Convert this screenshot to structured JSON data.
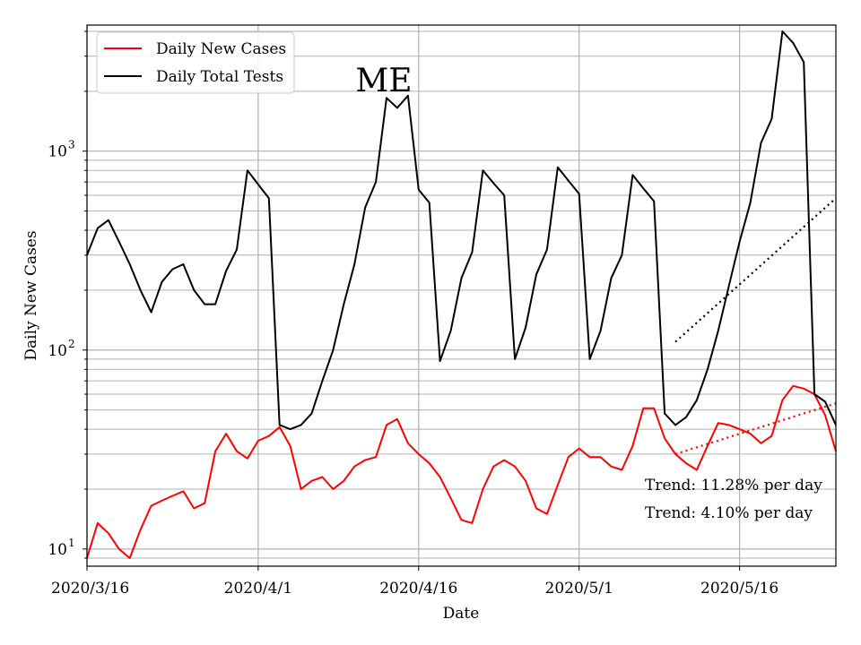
{
  "chart_data": {
    "type": "line",
    "title": "ME",
    "xlabel": "Date",
    "ylabel": "Daily New Cases",
    "yscale": "log",
    "ylim": [
      8.2,
      4300
    ],
    "xlim": [
      0,
      70
    ],
    "grid": true,
    "x_tick_values": [
      0,
      16,
      31,
      46,
      61
    ],
    "x_tick_labels": [
      "2020/3/16",
      "2020/4/1",
      "2020/4/16",
      "2020/5/1",
      "2020/5/16"
    ],
    "y_major_ticks": [
      10,
      100,
      1000
    ],
    "y_tick_labels": [
      {
        "base": "10",
        "exp": "1"
      },
      {
        "base": "10",
        "exp": "2"
      },
      {
        "base": "10",
        "exp": "3"
      }
    ],
    "legend": {
      "position": "top-left",
      "entries": [
        {
          "label": "Daily New Cases",
          "color": "#ff0000"
        },
        {
          "label": "Daily Total Tests",
          "color": "#000000"
        }
      ]
    },
    "series": [
      {
        "name": "Daily New Cases",
        "color": "#ff0000",
        "x": [
          0,
          1,
          2,
          3,
          4,
          5,
          6,
          7,
          8,
          9,
          10,
          11,
          12,
          13,
          14,
          15,
          16,
          17,
          18,
          19,
          20,
          21,
          22,
          23,
          24,
          25,
          26,
          27,
          28,
          29,
          30,
          31,
          32,
          33,
          34,
          35,
          36,
          37,
          38,
          39,
          40,
          41,
          42,
          43,
          44,
          45,
          46,
          47,
          48,
          49,
          50,
          51,
          52,
          53,
          54,
          55,
          56,
          57,
          58,
          59,
          60,
          61,
          62,
          63,
          64,
          65,
          66,
          67,
          68,
          69,
          70
        ],
        "values": [
          9,
          13.5,
          12,
          10,
          9,
          12.5,
          16.5,
          17.5,
          18.5,
          19.5,
          16,
          17,
          31,
          38,
          31,
          28.5,
          35,
          37,
          41,
          33,
          20,
          22,
          23,
          20,
          22,
          26,
          28,
          29,
          42,
          45,
          34,
          30,
          27,
          23,
          18,
          14,
          13.5,
          20,
          26,
          28,
          26,
          22,
          16,
          15,
          21,
          29,
          32,
          29,
          29,
          26,
          25,
          33,
          51,
          51,
          36,
          30,
          27,
          25,
          33,
          43,
          42,
          40,
          38,
          34,
          37,
          56,
          66,
          64,
          60,
          47,
          31
        ]
      },
      {
        "name": "Daily Total Tests",
        "color": "#000000",
        "x": [
          0,
          1,
          2,
          3,
          4,
          5,
          6,
          7,
          8,
          9,
          10,
          11,
          12,
          13,
          14,
          15,
          16,
          17,
          18,
          19,
          20,
          21,
          22,
          23,
          24,
          25,
          26,
          27,
          28,
          29,
          30,
          31,
          32,
          33,
          34,
          35,
          36,
          37,
          38,
          39,
          40,
          41,
          42,
          43,
          44,
          45,
          46,
          47,
          48,
          49,
          50,
          51,
          52,
          53,
          54,
          55,
          56,
          57,
          58,
          59,
          60,
          61,
          62,
          63,
          64,
          65,
          66,
          67,
          68,
          69,
          70
        ],
        "values": [
          300,
          410,
          450,
          350,
          270,
          200,
          155,
          220,
          255,
          270,
          200,
          170,
          170,
          250,
          320,
          800,
          680,
          580,
          42,
          40,
          42,
          48,
          70,
          100,
          170,
          270,
          520,
          700,
          1850,
          1650,
          1900,
          640,
          550,
          88,
          125,
          230,
          310,
          800,
          690,
          600,
          90,
          130,
          240,
          320,
          830,
          710,
          610,
          90,
          125,
          230,
          300,
          760,
          650,
          560,
          48,
          42,
          46,
          56,
          80,
          125,
          210,
          350,
          550,
          1100,
          1450,
          4000,
          3500,
          2800,
          60,
          55,
          42
        ]
      },
      {
        "name": "Trend (Daily New Cases)",
        "color": "#ff0000",
        "style": "dotted",
        "x": [
          55,
          70
        ],
        "values": [
          30,
          54
        ]
      },
      {
        "name": "Trend (Daily Total Tests)",
        "color": "#000000",
        "style": "dotted",
        "x": [
          55,
          70
        ],
        "values": [
          110,
          580
        ]
      }
    ],
    "annotations": [
      {
        "text": "Trend: 11.28% per day"
      },
      {
        "text": "Trend: 4.10% per day"
      }
    ]
  }
}
